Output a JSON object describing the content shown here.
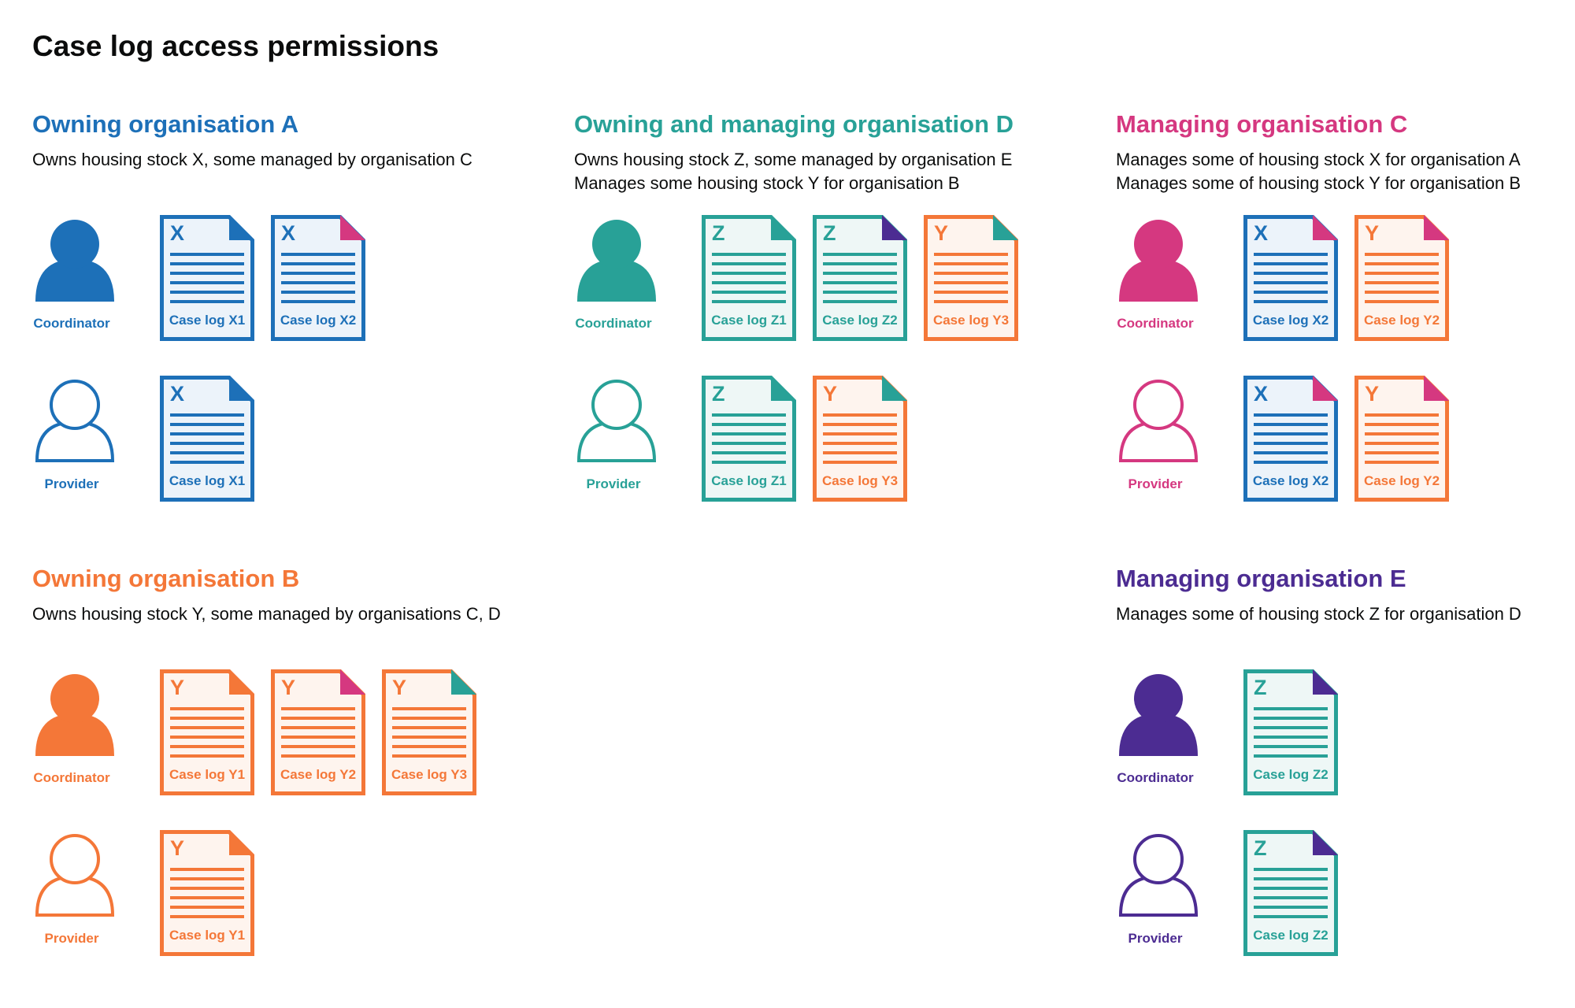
{
  "title": "Case log access permissions",
  "colors": {
    "blue": "#1d70b8",
    "teal": "#28a197",
    "magenta": "#d53880",
    "orange": "#f47738",
    "purple": "#4c2c92"
  },
  "tints": {
    "blue": "#ecf3fa",
    "teal": "#eef7f6",
    "orange": "#fef4ee"
  },
  "sections": [
    {
      "id": "a",
      "title": "Owning organisation A",
      "color": "blue",
      "desc": [
        "Owns housing stock X, some managed by organisation C"
      ],
      "roles": [
        {
          "label": "Coordinator",
          "filled": true,
          "docs": [
            {
              "letter": "X",
              "label": "Case log X1",
              "stock": "blue",
              "corner": "blue"
            },
            {
              "letter": "X",
              "label": "Case log X2",
              "stock": "blue",
              "corner": "magenta"
            }
          ]
        },
        {
          "label": "Provider",
          "filled": false,
          "docs": [
            {
              "letter": "X",
              "label": "Case log X1",
              "stock": "blue",
              "corner": "blue"
            }
          ]
        }
      ]
    },
    {
      "id": "d",
      "title": "Owning and managing organisation D",
      "color": "teal",
      "desc": [
        "Owns housing stock Z, some managed by organisation E",
        "Manages some housing stock Y for organisation B"
      ],
      "roles": [
        {
          "label": "Coordinator",
          "filled": true,
          "docs": [
            {
              "letter": "Z",
              "label": "Case log Z1",
              "stock": "teal",
              "corner": "teal"
            },
            {
              "letter": "Z",
              "label": "Case log Z2",
              "stock": "teal",
              "corner": "purple"
            },
            {
              "letter": "Y",
              "label": "Case log Y3",
              "stock": "orange",
              "corner": "teal"
            }
          ]
        },
        {
          "label": "Provider",
          "filled": false,
          "docs": [
            {
              "letter": "Z",
              "label": "Case log Z1",
              "stock": "teal",
              "corner": "teal"
            },
            {
              "letter": "Y",
              "label": "Case log Y3",
              "stock": "orange",
              "corner": "teal"
            }
          ]
        }
      ]
    },
    {
      "id": "c",
      "title": "Managing organisation C",
      "color": "magenta",
      "desc": [
        "Manages some of housing stock X for organisation A",
        "Manages some of housing stock Y for organisation B"
      ],
      "roles": [
        {
          "label": "Coordinator",
          "filled": true,
          "docs": [
            {
              "letter": "X",
              "label": "Case log X2",
              "stock": "blue",
              "corner": "magenta"
            },
            {
              "letter": "Y",
              "label": "Case log Y2",
              "stock": "orange",
              "corner": "magenta"
            }
          ]
        },
        {
          "label": "Provider",
          "filled": false,
          "docs": [
            {
              "letter": "X",
              "label": "Case log X2",
              "stock": "blue",
              "corner": "magenta"
            },
            {
              "letter": "Y",
              "label": "Case log Y2",
              "stock": "orange",
              "corner": "magenta"
            }
          ]
        }
      ]
    },
    {
      "id": "b",
      "title": "Owning organisation B",
      "color": "orange",
      "desc": [
        "Owns housing stock Y, some managed by organisations C, D"
      ],
      "roles": [
        {
          "label": "Coordinator",
          "filled": true,
          "docs": [
            {
              "letter": "Y",
              "label": "Case log Y1",
              "stock": "orange",
              "corner": "orange"
            },
            {
              "letter": "Y",
              "label": "Case log Y2",
              "stock": "orange",
              "corner": "magenta"
            },
            {
              "letter": "Y",
              "label": "Case log Y3",
              "stock": "orange",
              "corner": "teal"
            }
          ]
        },
        {
          "label": "Provider",
          "filled": false,
          "docs": [
            {
              "letter": "Y",
              "label": "Case log Y1",
              "stock": "orange",
              "corner": "orange"
            }
          ]
        }
      ]
    },
    {
      "id": "e",
      "title": "Managing organisation E",
      "color": "purple",
      "desc": [
        "Manages some of housing stock Z for organisation D"
      ],
      "roles": [
        {
          "label": "Coordinator",
          "filled": true,
          "docs": [
            {
              "letter": "Z",
              "label": "Case log Z2",
              "stock": "teal",
              "corner": "purple"
            }
          ]
        },
        {
          "label": "Provider",
          "filled": false,
          "docs": [
            {
              "letter": "Z",
              "label": "Case log Z2",
              "stock": "teal",
              "corner": "purple"
            }
          ]
        }
      ]
    }
  ]
}
